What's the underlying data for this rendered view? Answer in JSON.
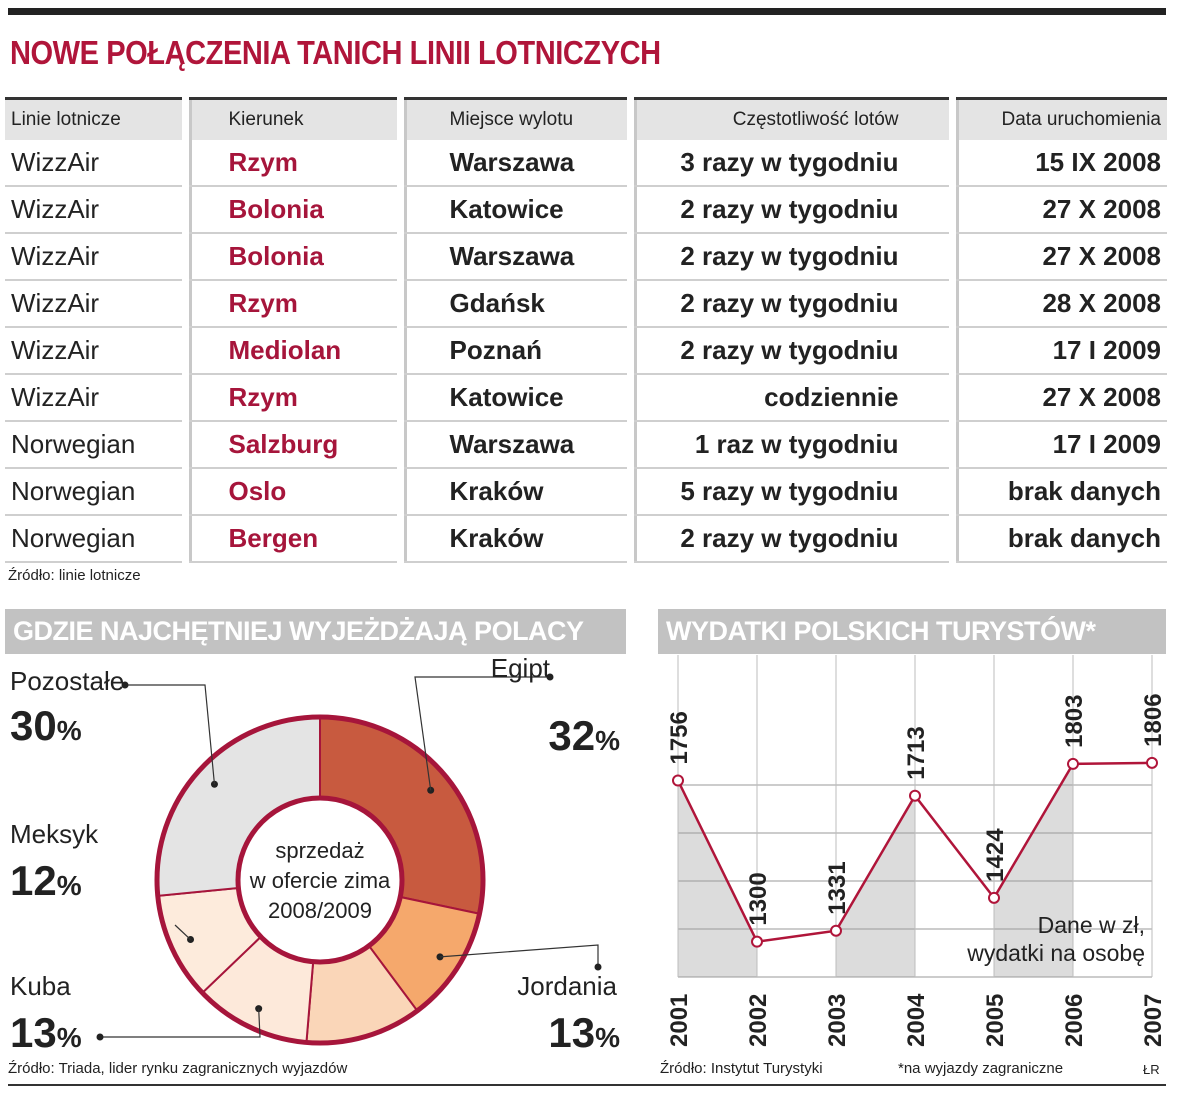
{
  "title": "NOWE POŁĄCZENIA TANICH LINII LOTNICZYCH",
  "table": {
    "headers": [
      "Linie lotnicze",
      "Kierunek",
      "Miejsce wylotu",
      "Częstotliwość lotów",
      "Data uruchomienia"
    ],
    "rows": [
      [
        "WizzAir",
        "Rzym",
        "Warszawa",
        "3 razy w tygodniu",
        "15 IX 2008"
      ],
      [
        "WizzAir",
        "Bolonia",
        "Katowice",
        "2 razy w tygodniu",
        "27 X 2008"
      ],
      [
        "WizzAir",
        "Bolonia",
        "Warszawa",
        "2 razy w tygodniu",
        "27 X 2008"
      ],
      [
        "WizzAir",
        "Rzym",
        "Gdańsk",
        "2 razy w tygodniu",
        "28 X 2008"
      ],
      [
        "WizzAir",
        "Mediolan",
        "Poznań",
        "2 razy w tygodniu",
        "17 I 2009"
      ],
      [
        "WizzAir",
        "Rzym",
        "Katowice",
        "codziennie",
        "27 X 2008"
      ],
      [
        "Norwegian",
        "Salzburg",
        "Warszawa",
        "1 raz w tygodniu",
        "17 I 2009"
      ],
      [
        "Norwegian",
        "Oslo",
        "Kraków",
        "5 razy w tygodniu",
        "brak danych"
      ],
      [
        "Norwegian",
        "Bergen",
        "Kraków",
        "2 razy w tygodniu",
        "brak danych"
      ]
    ],
    "source": "Źródło: linie lotnicze"
  },
  "chart_data": [
    {
      "type": "pie",
      "title": "GDZIE NAJCHĘTNIEJ WYJEŻDŻAJĄ POLACY",
      "center_label": [
        "sprzedaż",
        "w ofercie zima",
        "2008/2009"
      ],
      "slices": [
        {
          "label": "Egipt",
          "value": 32,
          "display": "32",
          "color": "#c85a3f"
        },
        {
          "label": "Jordania",
          "value": 13,
          "display": "13",
          "color": "#f5a86c"
        },
        {
          "label": "",
          "value": 13,
          "display": "",
          "color": "#fad6b8"
        },
        {
          "label": "Kuba",
          "value": 13,
          "display": "13",
          "color": "#fde9da"
        },
        {
          "label": "Meksyk",
          "value": 12,
          "display": "12",
          "color": "#fdebdc"
        },
        {
          "label": "Pozostałe",
          "value": 30,
          "display": "30",
          "color": "#e4e4e4"
        }
      ],
      "unit": "%",
      "source": "Źródło: Triada, lider rynku zagranicznych wyjazdów"
    },
    {
      "type": "line",
      "title": "WYDATKI POLSKICH TURYSTÓW*",
      "x": [
        "2001",
        "2002",
        "2003",
        "2004",
        "2005",
        "2006",
        "2007"
      ],
      "series": [
        {
          "values": [
            1756,
            1300,
            1331,
            1713,
            1424,
            1803,
            1806
          ]
        }
      ],
      "ylim": [
        1200,
        1850
      ],
      "grid": true,
      "note": [
        "Dane w zł,",
        "wydatki na osobę"
      ],
      "source": "Źródło: Instytut Turystyki",
      "footnote": "*na wyjazdy zagraniczne",
      "credit": "ŁR"
    }
  ],
  "colors": {
    "accent": "#b0153a",
    "header_bg": "#c2c2c2",
    "line": "#b0153a"
  }
}
